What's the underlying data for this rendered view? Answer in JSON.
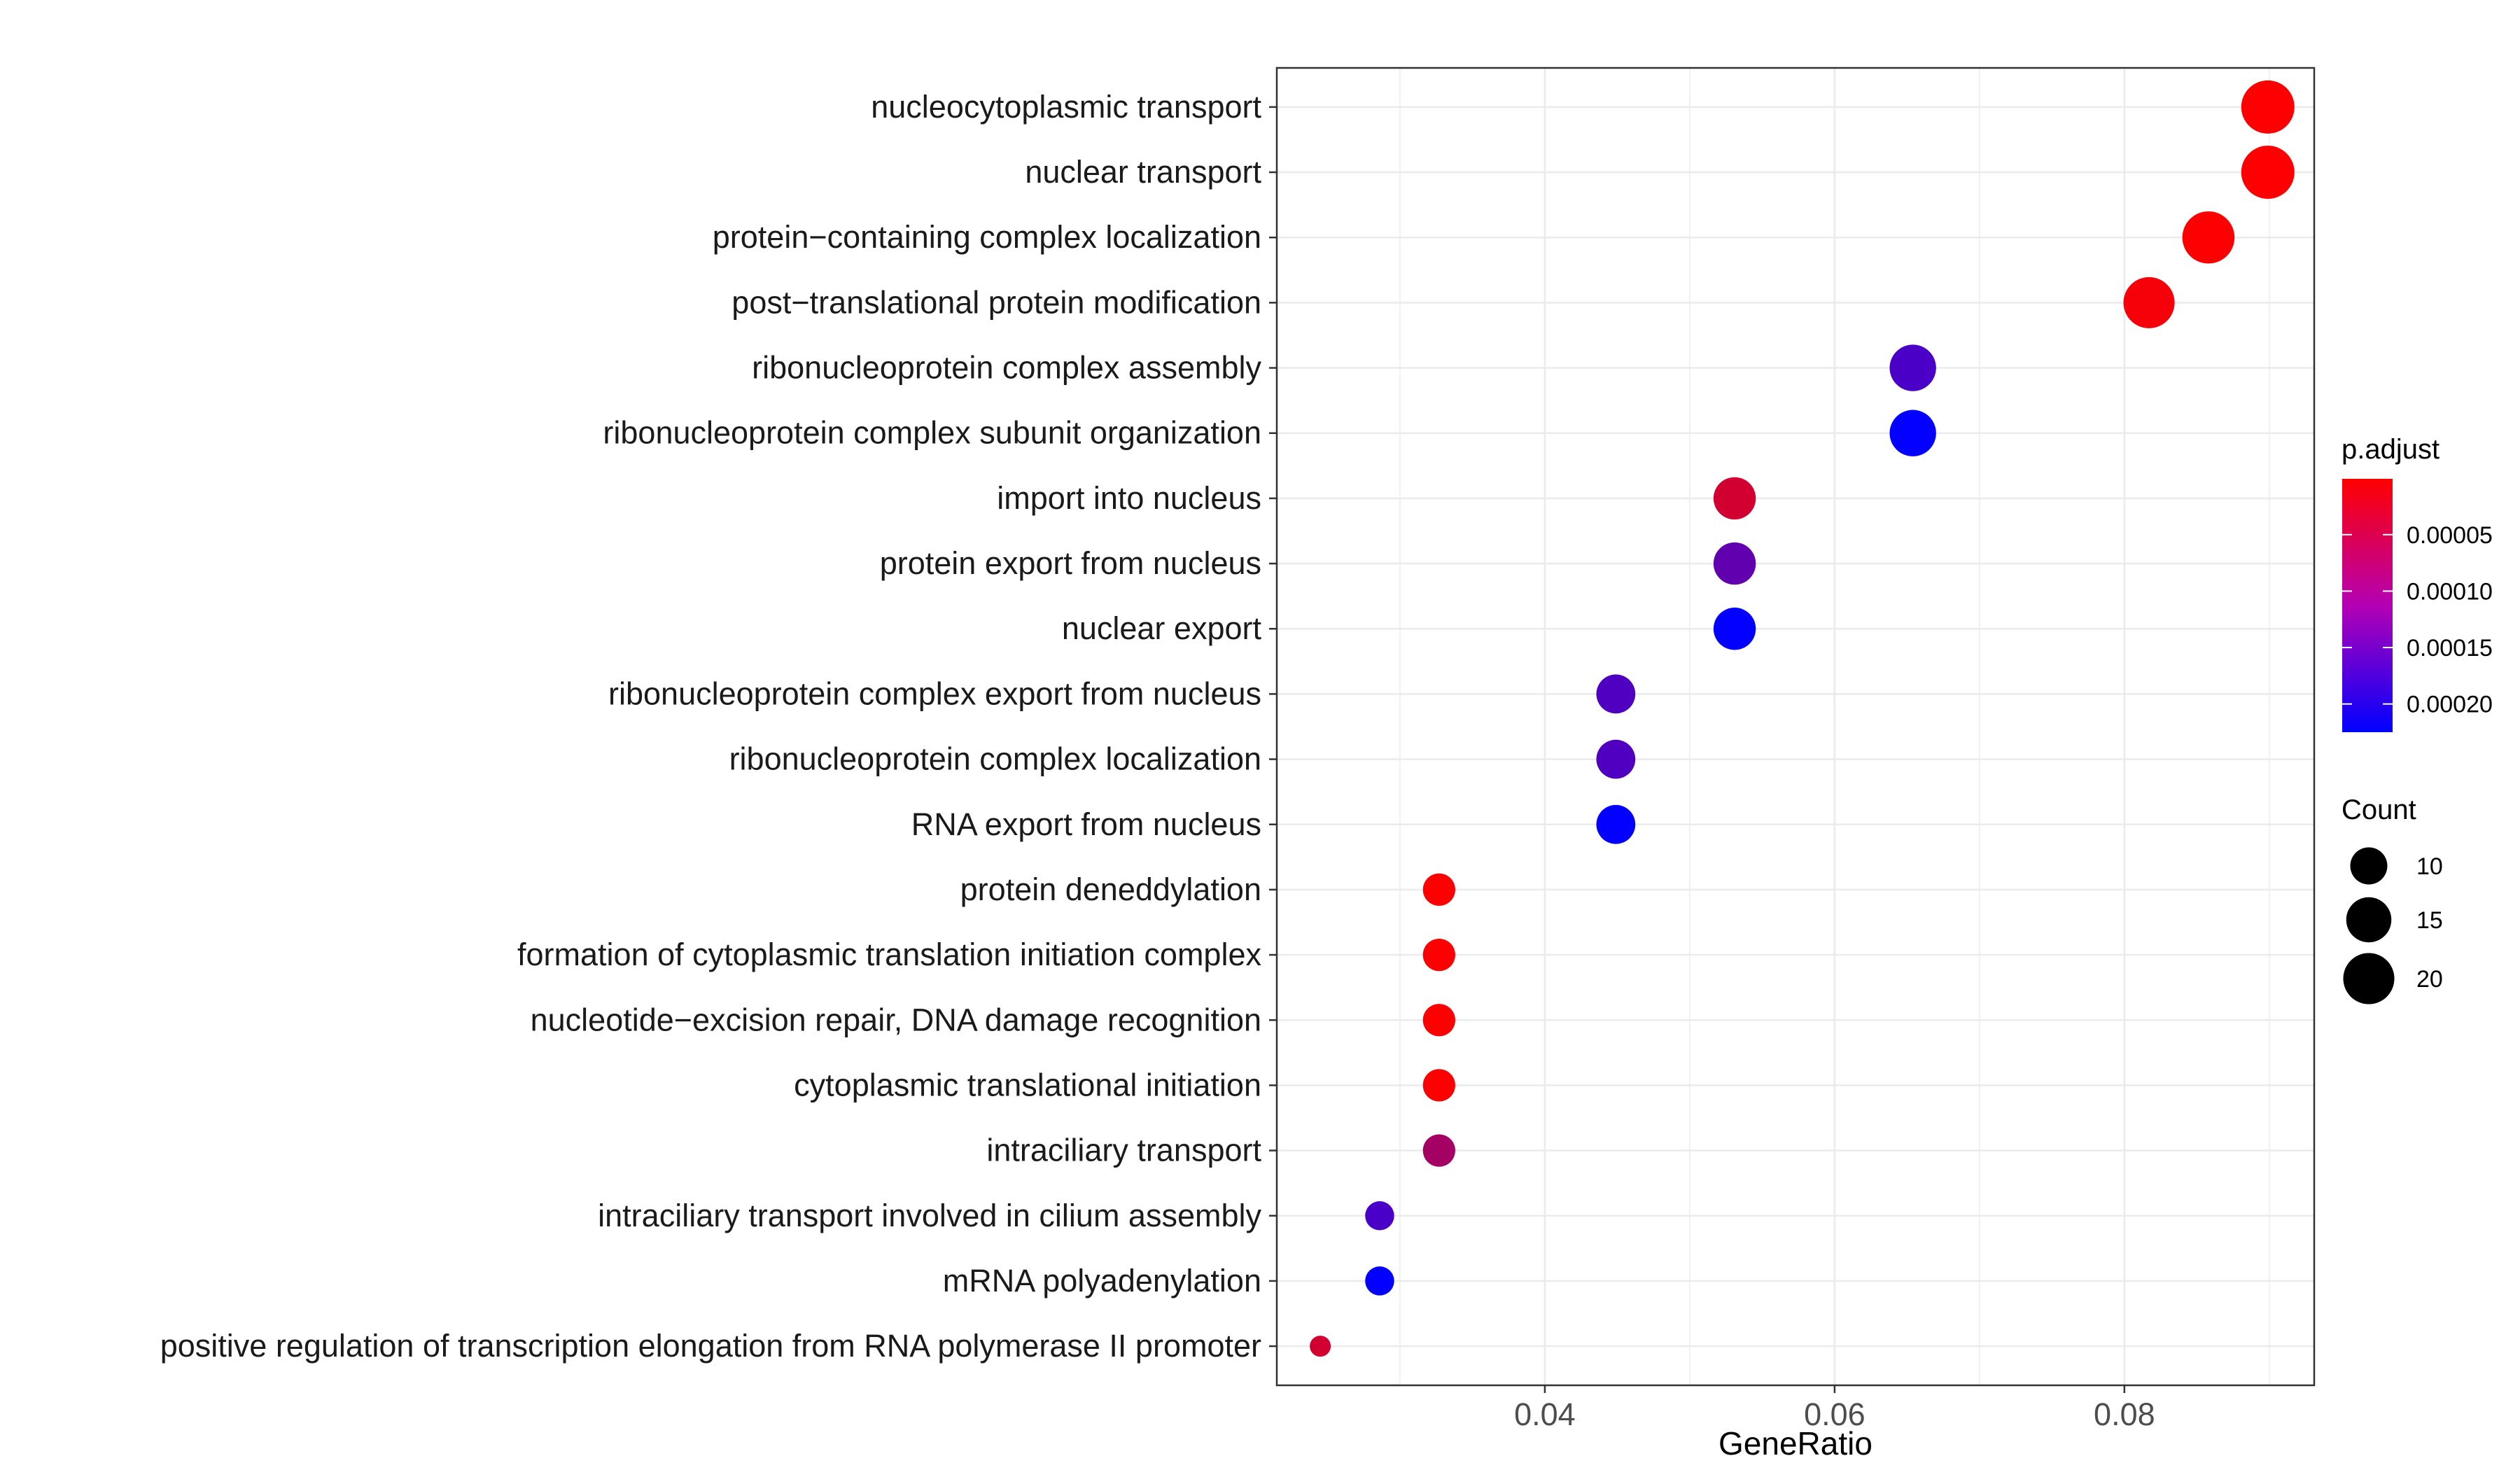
{
  "chart_data": {
    "type": "scatter",
    "xlabel": "GeneRatio",
    "xlim": [
      0.0215,
      0.0931
    ],
    "xticks": [
      {
        "value": 0.04,
        "label": "0.04"
      },
      {
        "value": 0.06,
        "label": "0.06"
      },
      {
        "value": 0.08,
        "label": "0.08"
      }
    ],
    "grid": true,
    "legend_position": "right",
    "color_scale": {
      "title": "p.adjust",
      "low_color": "#ff0000",
      "high_color": "#0000ff",
      "range": [
        5e-07,
        0.000225
      ],
      "ticks": [
        {
          "value": 5e-05,
          "label": "0.00005"
        },
        {
          "value": 0.0001,
          "label": "0.00010"
        },
        {
          "value": 0.00015,
          "label": "0.00015"
        },
        {
          "value": 0.0002,
          "label": "0.00020"
        }
      ]
    },
    "size_scale": {
      "title": "Count",
      "range": [
        6,
        22
      ],
      "ticks": [
        {
          "value": 10,
          "label": "10"
        },
        {
          "value": 15,
          "label": "15"
        },
        {
          "value": 20,
          "label": "20"
        }
      ]
    },
    "points": [
      {
        "term": "nucleocytoplasmic transport",
        "gene_ratio": 0.0899,
        "count": 22,
        "p_adjust": 1e-06
      },
      {
        "term": "nuclear transport",
        "gene_ratio": 0.0899,
        "count": 22,
        "p_adjust": 1e-06
      },
      {
        "term": "protein−containing complex localization",
        "gene_ratio": 0.0858,
        "count": 21,
        "p_adjust": 2e-06
      },
      {
        "term": "post−translational protein modification",
        "gene_ratio": 0.0817,
        "count": 20,
        "p_adjust": 8e-06
      },
      {
        "term": "ribonucleoprotein complex assembly",
        "gene_ratio": 0.0654,
        "count": 16,
        "p_adjust": 0.00016
      },
      {
        "term": "ribonucleoprotein complex subunit organization",
        "gene_ratio": 0.0654,
        "count": 16,
        "p_adjust": 0.000222
      },
      {
        "term": "import into nucleus",
        "gene_ratio": 0.0531,
        "count": 13,
        "p_adjust": 4e-05
      },
      {
        "term": "protein export from nucleus",
        "gene_ratio": 0.0531,
        "count": 13,
        "p_adjust": 0.00014
      },
      {
        "term": "nuclear export",
        "gene_ratio": 0.0531,
        "count": 13,
        "p_adjust": 0.000222
      },
      {
        "term": "ribonucleoprotein complex export from nucleus",
        "gene_ratio": 0.0449,
        "count": 11,
        "p_adjust": 0.000155
      },
      {
        "term": "ribonucleoprotein complex localization",
        "gene_ratio": 0.0449,
        "count": 11,
        "p_adjust": 0.000155
      },
      {
        "term": "RNA export from nucleus",
        "gene_ratio": 0.0449,
        "count": 11,
        "p_adjust": 0.000222
      },
      {
        "term": "protein deneddylation",
        "gene_ratio": 0.0327,
        "count": 8,
        "p_adjust": 2e-06
      },
      {
        "term": "formation of cytoplasmic translation initiation complex",
        "gene_ratio": 0.0327,
        "count": 8,
        "p_adjust": 2e-06
      },
      {
        "term": "nucleotide−excision repair, DNA damage recognition",
        "gene_ratio": 0.0327,
        "count": 8,
        "p_adjust": 2e-06
      },
      {
        "term": "cytoplasmic translational initiation",
        "gene_ratio": 0.0327,
        "count": 8,
        "p_adjust": 2e-06
      },
      {
        "term": "intraciliary transport",
        "gene_ratio": 0.0327,
        "count": 8,
        "p_adjust": 8e-05
      },
      {
        "term": "intraciliary transport involved in cilium assembly",
        "gene_ratio": 0.0286,
        "count": 7,
        "p_adjust": 0.00016
      },
      {
        "term": "mRNA polyadenylation",
        "gene_ratio": 0.0286,
        "count": 7,
        "p_adjust": 0.000222
      },
      {
        "term": "positive regulation of transcription elongation from RNA polymerase II promoter",
        "gene_ratio": 0.0245,
        "count": 6,
        "p_adjust": 4e-05
      }
    ]
  }
}
